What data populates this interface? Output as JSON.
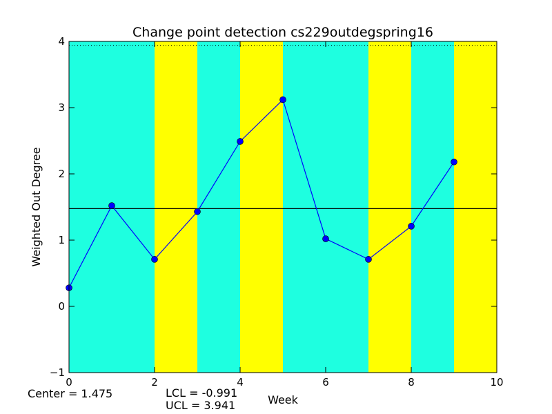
{
  "chart_data": {
    "type": "line",
    "title": "Change point detection cs229outdegspring16",
    "xlabel": "Week",
    "ylabel": "Weighted Out Degree",
    "xlim": [
      0,
      10
    ],
    "ylim": [
      -1,
      4
    ],
    "xticks": [
      "0",
      "2",
      "4",
      "6",
      "8",
      "10"
    ],
    "yticks": [
      "−1",
      "0",
      "1",
      "2",
      "3",
      "4"
    ],
    "x": [
      0,
      1,
      2,
      3,
      4,
      5,
      6,
      7,
      8,
      9
    ],
    "y": [
      0.28,
      1.52,
      0.71,
      1.43,
      2.49,
      3.12,
      1.02,
      0.71,
      1.21,
      2.18
    ],
    "center": 1.475,
    "ucl": 3.941,
    "bands": [
      {
        "from": 0,
        "to": 2,
        "color": "#1effe0"
      },
      {
        "from": 2,
        "to": 3,
        "color": "#ffff00"
      },
      {
        "from": 3,
        "to": 4,
        "color": "#1effe0"
      },
      {
        "from": 4,
        "to": 5,
        "color": "#ffff00"
      },
      {
        "from": 5,
        "to": 7,
        "color": "#1effe0"
      },
      {
        "from": 7,
        "to": 8,
        "color": "#ffff00"
      },
      {
        "from": 8,
        "to": 9,
        "color": "#1effe0"
      },
      {
        "from": 9,
        "to": 10,
        "color": "#ffff00"
      }
    ],
    "line_color": "#0000ff",
    "marker_color": "#0000ff",
    "center_line_color": "#000000"
  },
  "stats": {
    "center": "Center = 1.475",
    "lcl": "LCL = -0.991",
    "ucl": "UCL = 3.941"
  }
}
